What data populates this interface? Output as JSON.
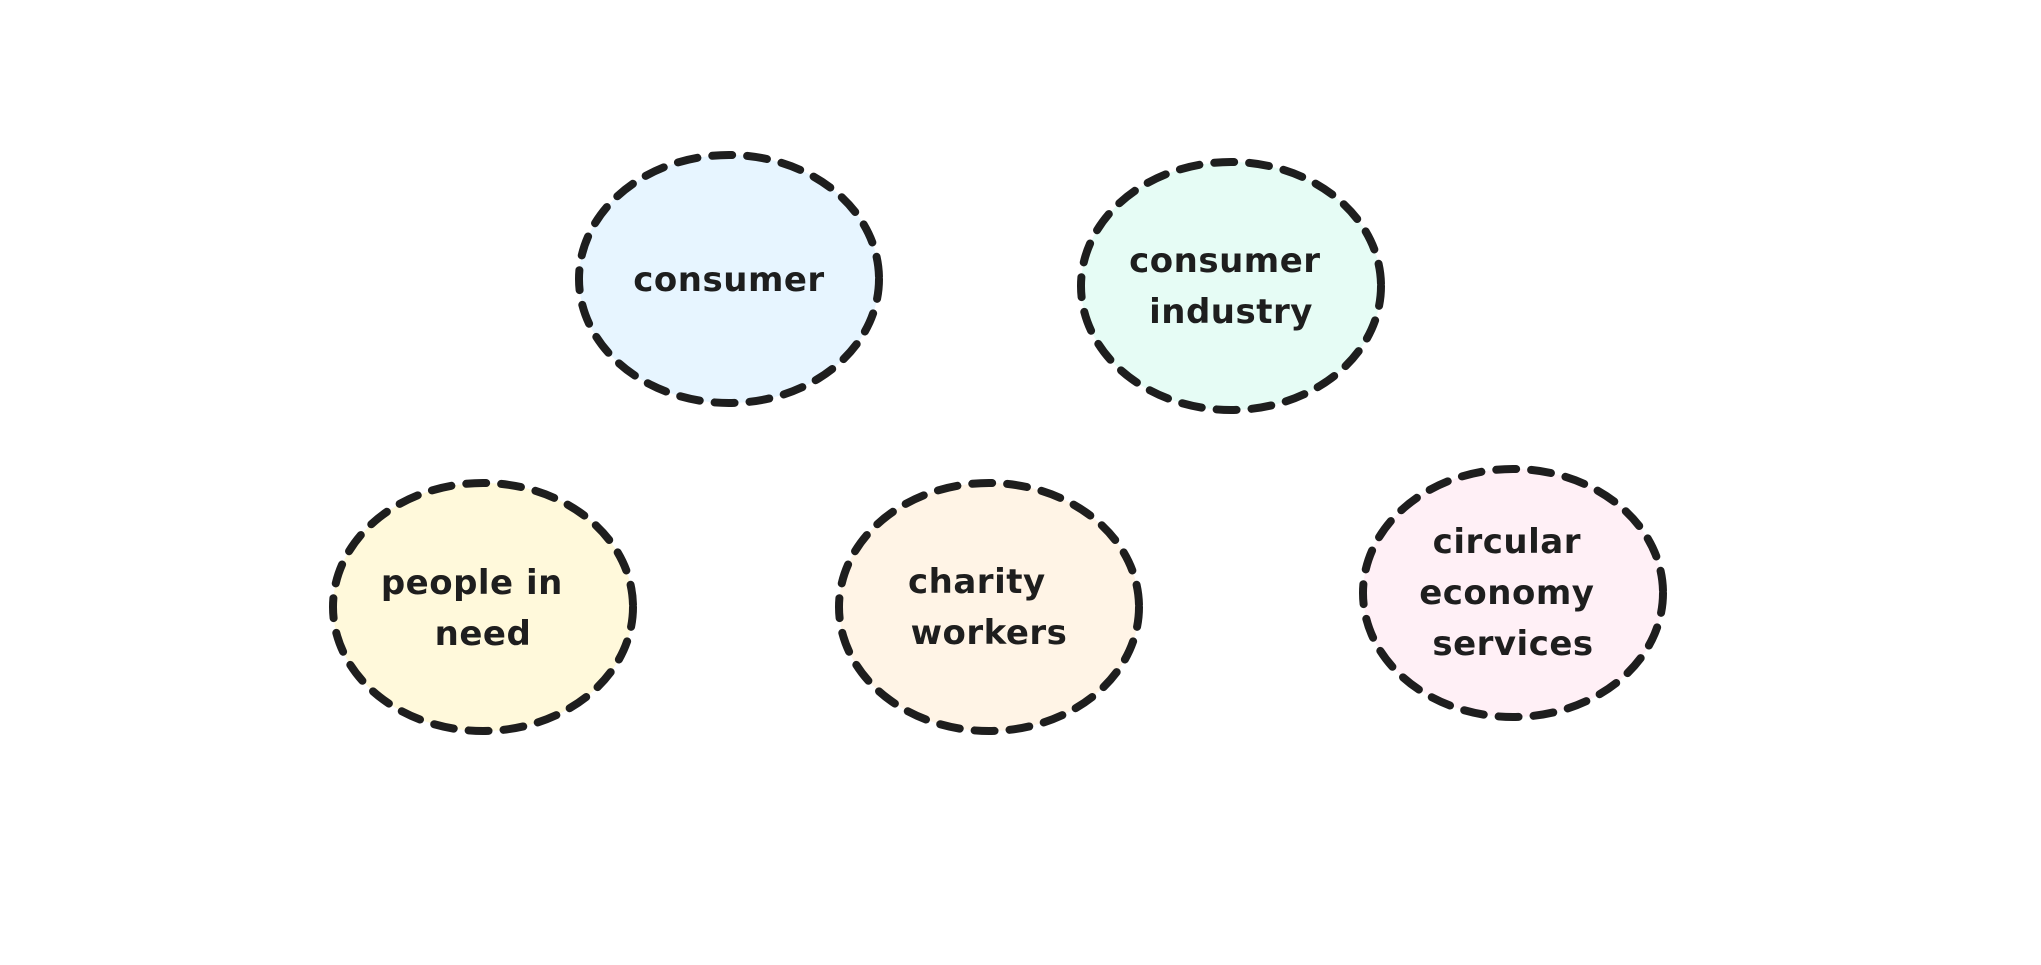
{
  "colors": {
    "stroke": "#1e1e1e",
    "text": "#1e1e1e",
    "background": "#ffffff"
  },
  "nodes": [
    {
      "id": "consumer",
      "lines": [
        "consumer"
      ],
      "fill": "#e7f5ff"
    },
    {
      "id": "consumer-industry",
      "lines": [
        "consumer",
        "industry"
      ],
      "fill": "#e6fcf5"
    },
    {
      "id": "people-in-need",
      "lines": [
        "people in",
        "need"
      ],
      "fill": "#fff9db"
    },
    {
      "id": "charity-workers",
      "lines": [
        "charity",
        "workers"
      ],
      "fill": "#fff4e6"
    },
    {
      "id": "circular-economy-services",
      "lines": [
        "circular",
        "economy",
        "services"
      ],
      "fill": "#fff0f6"
    }
  ]
}
